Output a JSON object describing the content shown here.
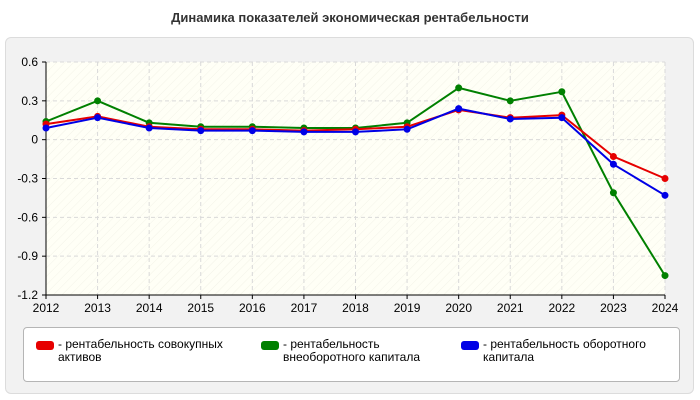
{
  "title": "Динамика показателей экономическая рентабельности",
  "colors": {
    "series1": "#e60000",
    "series2": "#008000",
    "series3": "#0000e6",
    "grid": "#d9d9d9",
    "plot_bg": "#fffff6"
  },
  "chart_data": {
    "type": "line",
    "title": "Динамика показателей экономическая рентабельности",
    "xlabel": "",
    "ylabel": "",
    "x": [
      "2012",
      "2013",
      "2014",
      "2015",
      "2016",
      "2017",
      "2018",
      "2019",
      "2020",
      "2021",
      "2022",
      "2023",
      "2024"
    ],
    "ylim": [
      -1.2,
      0.6
    ],
    "yticks": [
      "0.6",
      "0.3",
      "0",
      "-0.3",
      "-0.6",
      "-0.9",
      "-1.2"
    ],
    "grid": true,
    "legend_position": "bottom",
    "series": [
      {
        "name": "- рентабельность совокупных активов",
        "color": "#e60000",
        "values": [
          0.12,
          0.18,
          0.1,
          0.08,
          0.08,
          0.07,
          0.08,
          0.1,
          0.23,
          0.17,
          0.19,
          -0.13,
          -0.3
        ]
      },
      {
        "name": "- рентабельность внеоборотного капитала",
        "color": "#008000",
        "values": [
          0.14,
          0.3,
          0.13,
          0.1,
          0.1,
          0.09,
          0.09,
          0.13,
          0.4,
          0.3,
          0.37,
          -0.41,
          -1.05
        ]
      },
      {
        "name": "- рентабельность оборотного капитала",
        "color": "#0000e6",
        "values": [
          0.09,
          0.17,
          0.09,
          0.07,
          0.07,
          0.06,
          0.06,
          0.08,
          0.24,
          0.16,
          0.17,
          -0.19,
          -0.43
        ]
      }
    ]
  },
  "legend": {
    "items": [
      {
        "label": "- рентабельность совокупных активов",
        "color": "#e60000"
      },
      {
        "label": "- рентабельность внеоборотного капитала",
        "color": "#008000"
      },
      {
        "label": "- рентабельность оборотного капитала",
        "color": "#0000e6"
      }
    ]
  }
}
